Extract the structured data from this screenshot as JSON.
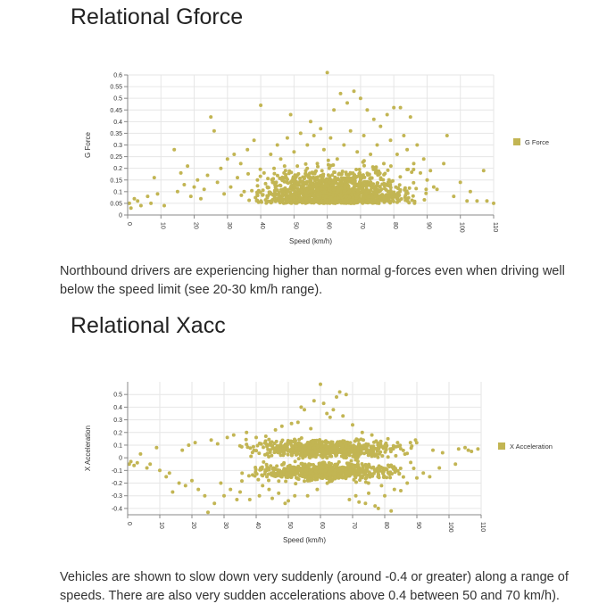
{
  "section1": {
    "title": "Relational Gforce",
    "description": "Northbound drivers are experiencing higher than normal g-forces even when driving well below the speed limit (see 20-30 km/h range)."
  },
  "section2": {
    "title": "Relational Xacc",
    "description": "Vehicles are shown to slow down very suddenly (around -0.4 or greater) along a range of speeds. There are also very sudden accelerations above 0.4 between 50 and 70 km/h)."
  },
  "colors": {
    "marker": "#c2b553",
    "grid": "#e6e6e6",
    "axis": "#888888",
    "text": "#333333"
  },
  "chart_data": [
    {
      "type": "scatter",
      "xlabel": "Speed (km/h)",
      "ylabel": "G Force",
      "legend": "G Force",
      "legend_position": "right",
      "grid": true,
      "xlim": [
        0,
        110
      ],
      "ylim": [
        0,
        0.6
      ],
      "xticks": [
        "0",
        "10",
        "20",
        "30",
        "40",
        "50",
        "60",
        "70",
        "80",
        "90",
        "100",
        "110"
      ],
      "yticks": [
        "0",
        "0.05",
        "0.1",
        "0.15",
        "0.2",
        "0.25",
        "0.3",
        "0.35",
        "0.4",
        "0.45",
        "0.5",
        "0.55",
        "0.6"
      ],
      "points": [
        [
          0.5,
          0.05
        ],
        [
          1,
          0.03
        ],
        [
          2,
          0.07
        ],
        [
          3,
          0.06
        ],
        [
          4,
          0.04
        ],
        [
          6,
          0.08
        ],
        [
          7,
          0.05
        ],
        [
          8,
          0.16
        ],
        [
          9,
          0.09
        ],
        [
          11,
          0.04
        ],
        [
          14,
          0.28
        ],
        [
          15,
          0.1
        ],
        [
          16,
          0.18
        ],
        [
          17,
          0.13
        ],
        [
          18,
          0.21
        ],
        [
          19,
          0.08
        ],
        [
          20,
          0.12
        ],
        [
          21,
          0.15
        ],
        [
          22,
          0.07
        ],
        [
          23,
          0.11
        ],
        [
          24,
          0.17
        ],
        [
          25,
          0.42
        ],
        [
          26,
          0.36
        ],
        [
          27,
          0.14
        ],
        [
          28,
          0.2
        ],
        [
          29,
          0.09
        ],
        [
          30,
          0.24
        ],
        [
          31,
          0.12
        ],
        [
          32,
          0.26
        ],
        [
          33,
          0.16
        ],
        [
          34,
          0.22
        ],
        [
          35,
          0.1
        ],
        [
          36,
          0.28
        ],
        [
          38,
          0.32
        ],
        [
          39,
          0.15
        ],
        [
          40,
          0.47
        ],
        [
          41,
          0.18
        ],
        [
          42,
          0.12
        ],
        [
          43,
          0.26
        ],
        [
          44,
          0.2
        ],
        [
          45,
          0.3
        ],
        [
          46,
          0.24
        ],
        [
          47,
          0.18
        ],
        [
          48,
          0.33
        ],
        [
          49,
          0.43
        ],
        [
          50,
          0.27
        ],
        [
          51,
          0.21
        ],
        [
          52,
          0.35
        ],
        [
          53,
          0.16
        ],
        [
          54,
          0.3
        ],
        [
          55,
          0.4
        ],
        [
          56,
          0.34
        ],
        [
          57,
          0.22
        ],
        [
          58,
          0.37
        ],
        [
          59,
          0.28
        ],
        [
          60,
          0.61
        ],
        [
          61,
          0.33
        ],
        [
          62,
          0.45
        ],
        [
          63,
          0.24
        ],
        [
          64,
          0.52
        ],
        [
          65,
          0.3
        ],
        [
          66,
          0.48
        ],
        [
          67,
          0.36
        ],
        [
          68,
          0.53
        ],
        [
          69,
          0.27
        ],
        [
          70,
          0.5
        ],
        [
          71,
          0.34
        ],
        [
          72,
          0.45
        ],
        [
          73,
          0.26
        ],
        [
          74,
          0.41
        ],
        [
          75,
          0.3
        ],
        [
          76,
          0.38
        ],
        [
          77,
          0.22
        ],
        [
          78,
          0.43
        ],
        [
          79,
          0.32
        ],
        [
          80,
          0.46
        ],
        [
          81,
          0.26
        ],
        [
          82,
          0.46
        ],
        [
          83,
          0.34
        ],
        [
          84,
          0.28
        ],
        [
          85,
          0.42
        ],
        [
          86,
          0.22
        ],
        [
          87,
          0.3
        ],
        [
          88,
          0.18
        ],
        [
          89,
          0.24
        ],
        [
          90,
          0.15
        ],
        [
          91,
          0.19
        ],
        [
          92,
          0.12
        ],
        [
          93,
          0.11
        ],
        [
          95,
          0.22
        ],
        [
          96,
          0.34
        ],
        [
          98,
          0.08
        ],
        [
          100,
          0.14
        ],
        [
          102,
          0.06
        ],
        [
          103,
          0.1
        ],
        [
          105,
          0.06
        ],
        [
          107,
          0.19
        ],
        [
          108,
          0.06
        ],
        [
          110,
          0.05
        ]
      ],
      "cloud": {
        "x": [
          16,
          96
        ],
        "y": [
          0.01,
          0.26
        ],
        "peak_x": 62
      }
    },
    {
      "type": "scatter",
      "xlabel": "Speed (km/h)",
      "ylabel": "X Acceleration",
      "legend": "X Acceleration",
      "legend_position": "right",
      "grid": true,
      "xlim": [
        0,
        110
      ],
      "ylim": [
        -0.45,
        0.6
      ],
      "xticks": [
        "0",
        "10",
        "20",
        "30",
        "40",
        "50",
        "60",
        "70",
        "80",
        "90",
        "100",
        "110"
      ],
      "yticks": [
        "-0.4",
        "-0.3",
        "-0.2",
        "-0.1",
        "0",
        "0.1",
        "0.2",
        "0.3",
        "0.4",
        "0.5"
      ],
      "points": [
        [
          0.5,
          -0.05
        ],
        [
          1,
          -0.03
        ],
        [
          2,
          -0.06
        ],
        [
          3,
          -0.04
        ],
        [
          4,
          0.03
        ],
        [
          6,
          -0.08
        ],
        [
          7,
          -0.05
        ],
        [
          9,
          0.08
        ],
        [
          10,
          -0.1
        ],
        [
          12,
          -0.15
        ],
        [
          13,
          -0.12
        ],
        [
          14,
          -0.27
        ],
        [
          16,
          -0.2
        ],
        [
          17,
          0.06
        ],
        [
          18,
          -0.22
        ],
        [
          19,
          0.1
        ],
        [
          20,
          -0.18
        ],
        [
          21,
          0.12
        ],
        [
          22,
          -0.25
        ],
        [
          24,
          -0.3
        ],
        [
          25,
          -0.43
        ],
        [
          26,
          0.14
        ],
        [
          27,
          -0.36
        ],
        [
          28,
          0.11
        ],
        [
          29,
          -0.2
        ],
        [
          30,
          -0.3
        ],
        [
          31,
          0.16
        ],
        [
          32,
          -0.25
        ],
        [
          33,
          0.18
        ],
        [
          34,
          -0.33
        ],
        [
          35,
          -0.27
        ],
        [
          37,
          0.2
        ],
        [
          38,
          -0.33
        ],
        [
          40,
          0.16
        ],
        [
          41,
          -0.3
        ],
        [
          42,
          -0.22
        ],
        [
          43,
          0.17
        ],
        [
          44,
          -0.25
        ],
        [
          45,
          -0.32
        ],
        [
          46,
          0.22
        ],
        [
          47,
          -0.28
        ],
        [
          48,
          0.25
        ],
        [
          49,
          -0.36
        ],
        [
          50,
          -0.34
        ],
        [
          51,
          0.27
        ],
        [
          52,
          -0.3
        ],
        [
          53,
          0.28
        ],
        [
          54,
          0.4
        ],
        [
          55,
          0.38
        ],
        [
          56,
          -0.3
        ],
        [
          57,
          0.23
        ],
        [
          58,
          0.45
        ],
        [
          59,
          -0.25
        ],
        [
          60,
          0.58
        ],
        [
          61,
          0.43
        ],
        [
          62,
          0.35
        ],
        [
          63,
          0.32
        ],
        [
          64,
          0.38
        ],
        [
          65,
          0.48
        ],
        [
          66,
          0.52
        ],
        [
          67,
          0.33
        ],
        [
          68,
          0.5
        ],
        [
          69,
          -0.33
        ],
        [
          70,
          0.26
        ],
        [
          71,
          -0.3
        ],
        [
          72,
          -0.35
        ],
        [
          73,
          0.2
        ],
        [
          74,
          -0.36
        ],
        [
          75,
          -0.28
        ],
        [
          76,
          0.18
        ],
        [
          77,
          -0.38
        ],
        [
          78,
          -0.4
        ],
        [
          79,
          -0.22
        ],
        [
          80,
          -0.3
        ],
        [
          81,
          0.15
        ],
        [
          82,
          -0.42
        ],
        [
          83,
          -0.25
        ],
        [
          84,
          0.12
        ],
        [
          85,
          -0.26
        ],
        [
          87,
          -0.2
        ],
        [
          88,
          0.12
        ],
        [
          90,
          -0.16
        ],
        [
          92,
          -0.12
        ],
        [
          94,
          -0.15
        ],
        [
          95,
          0.06
        ],
        [
          97,
          -0.08
        ],
        [
          98,
          0.04
        ],
        [
          102,
          -0.05
        ],
        [
          103,
          0.07
        ],
        [
          105,
          0.08
        ],
        [
          106,
          0.06
        ],
        [
          107,
          0.05
        ],
        [
          109,
          0.07
        ]
      ],
      "cloud": {
        "x": [
          18,
          98
        ],
        "y": [
          -0.3,
          0.18
        ],
        "peak_x": 62
      }
    }
  ]
}
